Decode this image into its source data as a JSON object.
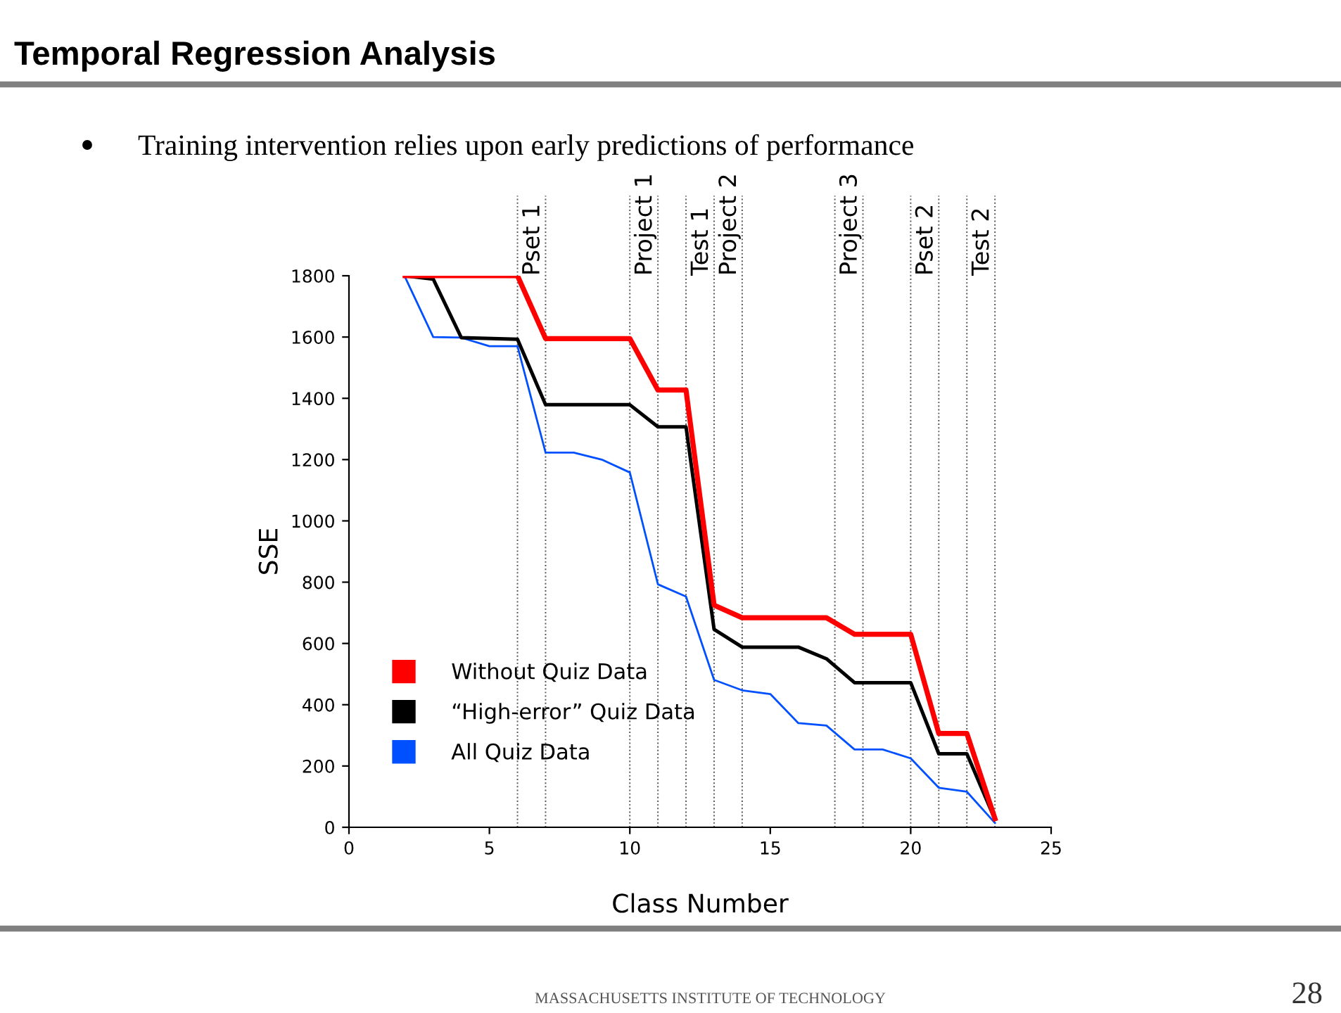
{
  "chart_data": {
    "type": "line",
    "title": "Temporal Regression Analysis",
    "subtitle": "Training intervention relies upon early predictions of performance",
    "xlabel": "Class Number",
    "ylabel": "SSE",
    "xlim": [
      0,
      25
    ],
    "ylim": [
      0,
      1800
    ],
    "xticks": [
      0,
      5,
      10,
      15,
      20,
      25
    ],
    "yticks": [
      0,
      200,
      400,
      600,
      800,
      1000,
      1200,
      1400,
      1600,
      1800
    ],
    "grid": false,
    "legend": "bottom left",
    "marker": "none",
    "line_style": "solid",
    "series": [
      {
        "name": "Without Quiz Data",
        "color": "#ff0000",
        "x": [
          2,
          6,
          7,
          10,
          11,
          12,
          13,
          14,
          17,
          18,
          20,
          21,
          22,
          23
        ],
        "values": [
          1800,
          1800,
          1595,
          1595,
          1427,
          1427,
          725,
          684,
          684,
          630,
          630,
          306,
          306,
          28
        ]
      },
      {
        "name": "“High-error” Quiz Data",
        "color": "#000000",
        "x": [
          2,
          3,
          4,
          6,
          7,
          10,
          11,
          12,
          13,
          14,
          16,
          17,
          18,
          20,
          21,
          22,
          23
        ],
        "values": [
          1800,
          1789,
          1598,
          1593,
          1379,
          1379,
          1307,
          1307,
          646,
          588,
          588,
          550,
          472,
          472,
          240,
          240,
          26
        ]
      },
      {
        "name": "All Quiz Data",
        "color": "#0050ff",
        "x": [
          2,
          3,
          4,
          5,
          6,
          7,
          8,
          9,
          10,
          11,
          12,
          13,
          14,
          15,
          16,
          17,
          18,
          19,
          20,
          21,
          22,
          23
        ],
        "values": [
          1795,
          1600,
          1598,
          1570,
          1570,
          1223,
          1223,
          1200,
          1158,
          793,
          753,
          481,
          447,
          435,
          340,
          332,
          254,
          254,
          225,
          129,
          116,
          14
        ]
      }
    ],
    "ref_lines": [
      {
        "axis": "x",
        "value": 6,
        "line_style": "dotted"
      },
      {
        "axis": "x",
        "value": 7,
        "label": "Pset 1",
        "line_style": "dotted"
      },
      {
        "axis": "x",
        "value": 10,
        "line_style": "dotted"
      },
      {
        "axis": "x",
        "value": 11,
        "label": "Project 1",
        "line_style": "dotted"
      },
      {
        "axis": "x",
        "value": 12,
        "line_style": "dotted"
      },
      {
        "axis": "x",
        "value": 13,
        "label": "Test 1",
        "line_style": "dotted"
      },
      {
        "axis": "x",
        "value": 14,
        "label": "Project 2",
        "line_style": "dotted"
      },
      {
        "axis": "x",
        "value": 17.3,
        "line_style": "dotted"
      },
      {
        "axis": "x",
        "value": 18.3,
        "label": "Project 3",
        "line_style": "dotted"
      },
      {
        "axis": "x",
        "value": 20,
        "line_style": "dotted"
      },
      {
        "axis": "x",
        "value": 21,
        "label": "Pset 2",
        "line_style": "dotted"
      },
      {
        "axis": "x",
        "value": 22,
        "line_style": "dotted"
      },
      {
        "axis": "x",
        "value": 23,
        "label": "Test 2",
        "line_style": "dotted"
      }
    ],
    "annotations": [
      "MASSACHUSETTS INSTITUTE OF TECHNOLOGY",
      "28"
    ]
  }
}
